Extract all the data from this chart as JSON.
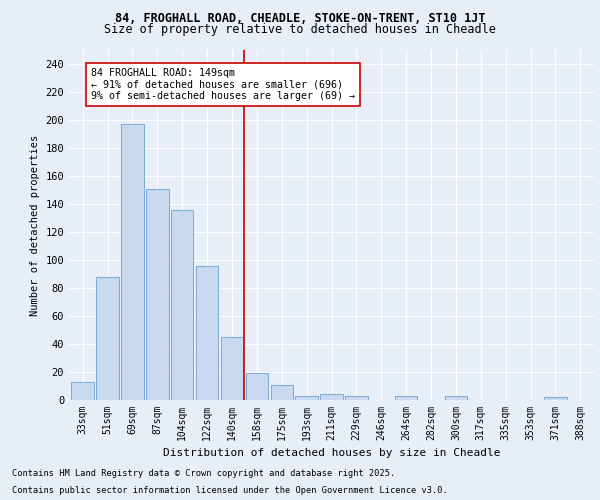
{
  "title1": "84, FROGHALL ROAD, CHEADLE, STOKE-ON-TRENT, ST10 1JT",
  "title2": "Size of property relative to detached houses in Cheadle",
  "xlabel": "Distribution of detached houses by size in Cheadle",
  "ylabel": "Number of detached properties",
  "categories": [
    "33sqm",
    "51sqm",
    "69sqm",
    "87sqm",
    "104sqm",
    "122sqm",
    "140sqm",
    "158sqm",
    "175sqm",
    "193sqm",
    "211sqm",
    "229sqm",
    "246sqm",
    "264sqm",
    "282sqm",
    "300sqm",
    "317sqm",
    "335sqm",
    "353sqm",
    "371sqm",
    "388sqm"
  ],
  "values": [
    13,
    88,
    197,
    151,
    136,
    96,
    45,
    19,
    11,
    3,
    4,
    3,
    0,
    3,
    0,
    3,
    0,
    0,
    0,
    2,
    0
  ],
  "bar_color": "#c9d9f0",
  "bar_edge_color": "#7aaad4",
  "vline_x": 6.5,
  "vline_color": "#cc0000",
  "annotation_text": "84 FROGHALL ROAD: 149sqm\n← 91% of detached houses are smaller (696)\n9% of semi-detached houses are larger (69) →",
  "annotation_box_color": "#ffffff",
  "annotation_box_edge": "#cc0000",
  "ylim": [
    0,
    250
  ],
  "yticks": [
    0,
    20,
    40,
    60,
    80,
    100,
    120,
    140,
    160,
    180,
    200,
    220,
    240
  ],
  "footnote1": "Contains HM Land Registry data © Crown copyright and database right 2025.",
  "footnote2": "Contains public sector information licensed under the Open Government Licence v3.0.",
  "bg_color": "#e8eef8",
  "plot_bg_color": "#e8eef8"
}
